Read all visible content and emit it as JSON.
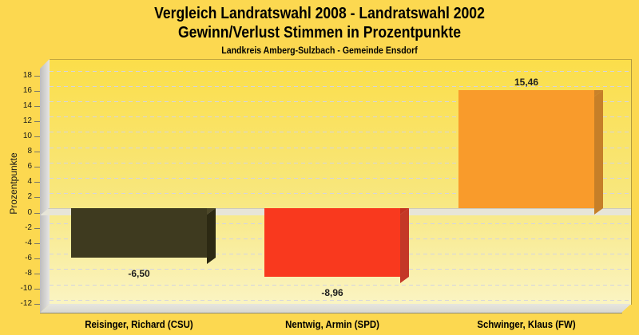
{
  "page": {
    "background_color": "#FCD850",
    "title_line1": "Vergleich Landratswahl 2008 - Landratswahl 2002",
    "title_line2": "Gewinn/Verlust Stimmen in Prozentpunkte",
    "caption": "Landkreis Amberg-Sulzbach - Gemeinde Ensdorf"
  },
  "chart_data": {
    "type": "bar",
    "style": "3d-vertical-bars",
    "title": "Vergleich Landratswahl 2008 - Landratswahl 2002",
    "subtitle": "Gewinn/Verlust Stimmen in Prozentpunkte",
    "caption": "Landkreis Amberg-Sulzbach - Gemeinde Ensdorf",
    "xlabel": "",
    "ylabel": "Prozentpunkte",
    "ylim": [
      -12,
      18
    ],
    "ytick_step": 2,
    "ytick_labels": [
      "-12",
      "-10",
      "-8",
      "-6",
      "-4",
      "-2",
      "0",
      "2",
      "4",
      "6",
      "8",
      "10",
      "12",
      "14",
      "16",
      "18"
    ],
    "grid": "horizontal-dashed",
    "legend": "none",
    "categories": [
      "Reisinger, Richard (CSU)",
      "Nentwig, Armin (SPD)",
      "Schwinger, Klaus (FW)"
    ],
    "values": [
      -6.5,
      -8.96,
      15.46
    ],
    "value_labels": [
      "-6,50",
      "-8,96",
      "15,46"
    ],
    "bar_colors": [
      {
        "front": "#3E3A1F",
        "top": "#4C4728",
        "side": "#2C2913"
      },
      {
        "front": "#F9391E",
        "top": "#C23120",
        "side": "#C43827"
      },
      {
        "front": "#F99B2B",
        "top": "#C8812A",
        "side": "#C67F28"
      }
    ],
    "plot_colors": {
      "page_background": "#FCD850",
      "plot_top": "#FBDE4A",
      "plot_bottom": "#FAF4C3",
      "gridline": "#D4D4E0",
      "wall": "#D2D1D0",
      "floor": "#E0DFD7",
      "zero_plane": "#E7E5D8"
    }
  }
}
